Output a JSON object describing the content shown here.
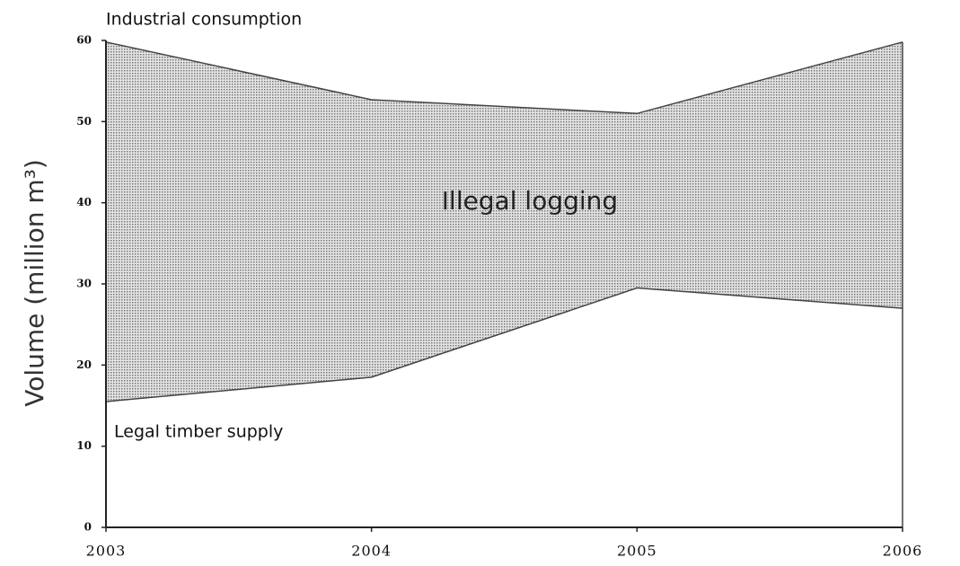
{
  "chart_data": {
    "type": "area",
    "ylabel": "Volume (million m³)",
    "x": [
      2003,
      2004,
      2005,
      2006
    ],
    "xlim": [
      2003,
      2006
    ],
    "xticks": [
      2003,
      2004,
      2005,
      2006
    ],
    "ylim": [
      0,
      60
    ],
    "yticks": [
      0,
      10,
      20,
      30,
      40,
      50,
      60
    ],
    "series": [
      {
        "name": "Legal timber supply",
        "color": "#444444",
        "values": [
          15.5,
          18.5,
          29.5,
          27
        ]
      },
      {
        "name": "Industrial consumption",
        "color": "#444444",
        "values": [
          59.8,
          52.7,
          51,
          59.8
        ]
      }
    ],
    "annotations": [
      "Illegal logging"
    ]
  }
}
